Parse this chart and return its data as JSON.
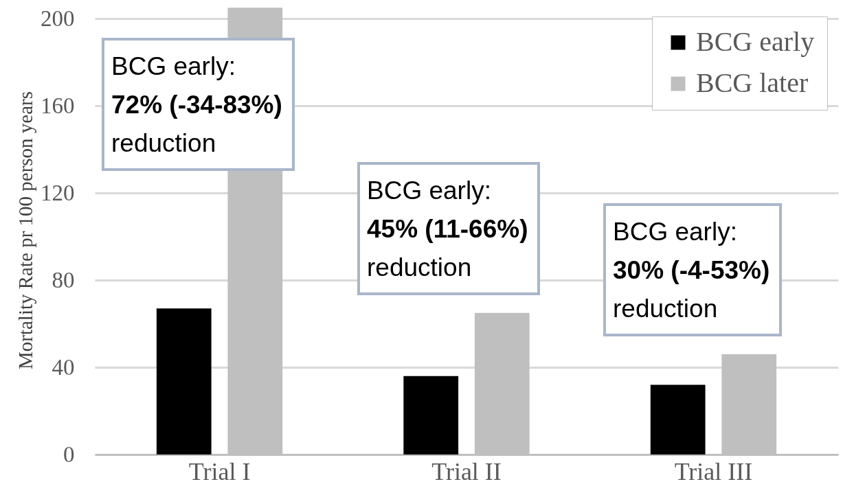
{
  "chart_data": {
    "type": "bar",
    "ylabel": "Mortality Rate pr 100 person years",
    "categories": [
      "Trial I",
      "Trial II",
      "Trial III"
    ],
    "series": [
      {
        "name": "BCG early",
        "color": "#000000",
        "values": [
          67,
          36,
          32
        ]
      },
      {
        "name": "BCG later",
        "color": "#bfbfbf",
        "values": [
          205,
          65,
          46
        ]
      }
    ],
    "ylim": [
      0,
      206
    ],
    "yticks": [
      0,
      40,
      80,
      120,
      160,
      200
    ],
    "grid": "y",
    "legend": "top right",
    "annotations": [
      "BCG early:\n72% (-34-83%)\nreduction",
      "BCG early:\n45% (11-66%)\nreduction",
      "BCG early:\n30% (-4-53%)\nreduction"
    ]
  }
}
